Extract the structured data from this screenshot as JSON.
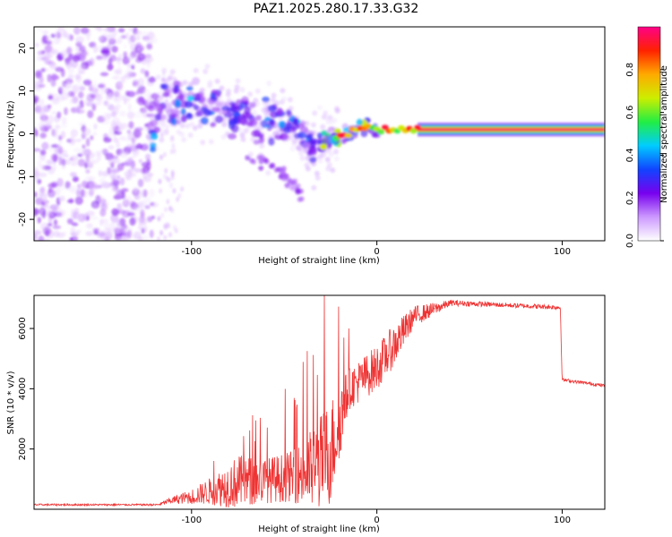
{
  "title": "PAZ1.2025.280.17.33.G32",
  "chart_data": [
    {
      "type": "heatmap",
      "name": "spectrogram",
      "xlabel": "Height of straight line (km)",
      "ylabel": "Frequency (Hz)",
      "xlim": [
        -185,
        123
      ],
      "ylim": [
        -25,
        25
      ],
      "xticks": [
        -100,
        0,
        100
      ],
      "xtick_labels": [
        "-100",
        "0",
        "100"
      ],
      "yticks": [
        20,
        10,
        0,
        -10,
        -20
      ],
      "ytick_labels": [
        "20",
        "10",
        "0",
        "-10",
        "-20"
      ],
      "noise_region_x": [
        -185,
        -120
      ],
      "signal_path": [
        {
          "x": -120,
          "f": 6
        },
        {
          "x": -105,
          "f": 7
        },
        {
          "x": -95,
          "f": 8
        },
        {
          "x": -85,
          "f": 5
        },
        {
          "x": -75,
          "f": 5
        },
        {
          "x": -65,
          "f": 3
        },
        {
          "x": -55,
          "f": 3
        },
        {
          "x": -45,
          "f": 2
        },
        {
          "x": -35,
          "f": -3
        },
        {
          "x": -25,
          "f": -1
        },
        {
          "x": -15,
          "f": 0
        },
        {
          "x": -8,
          "f": 2
        },
        {
          "x": 0,
          "f": 1
        },
        {
          "x": 123,
          "f": 1
        }
      ],
      "secondary_branch": [
        {
          "x": -70,
          "f": -5
        },
        {
          "x": -55,
          "f": -8
        },
        {
          "x": -45,
          "f": -12
        },
        {
          "x": -40,
          "f": -14
        }
      ],
      "steady_tone": {
        "f": 1,
        "x_start": 22,
        "x_end": 123,
        "amplitude": 1.0
      }
    },
    {
      "type": "line",
      "name": "snr",
      "xlabel": "Height of straight line (km)",
      "ylabel": "SNR (10 * v/v)",
      "xlim": [
        -185,
        123
      ],
      "ylim": [
        0,
        7100
      ],
      "xticks": [
        -100,
        0,
        100
      ],
      "xtick_labels": [
        "-100",
        "0",
        "100"
      ],
      "yticks": [
        2000,
        4000,
        6000
      ],
      "ytick_labels": [
        "2000",
        "4000",
        "6000"
      ],
      "color": "#ee3333",
      "envelope": [
        {
          "x": -185,
          "mean": 150,
          "spread": 60
        },
        {
          "x": -118,
          "mean": 150,
          "spread": 60
        },
        {
          "x": -112,
          "mean": 280,
          "spread": 200
        },
        {
          "x": -100,
          "mean": 420,
          "spread": 500
        },
        {
          "x": -90,
          "mean": 600,
          "spread": 900
        },
        {
          "x": -75,
          "mean": 900,
          "spread": 1800
        },
        {
          "x": -60,
          "mean": 950,
          "spread": 1500
        },
        {
          "x": -45,
          "mean": 1100,
          "spread": 1700
        },
        {
          "x": -35,
          "mean": 1300,
          "spread": 2800
        },
        {
          "x": -25,
          "mean": 1900,
          "spread": 3600
        },
        {
          "x": -15,
          "mean": 4000,
          "spread": 1400
        },
        {
          "x": 0,
          "mean": 4700,
          "spread": 1500
        },
        {
          "x": 10,
          "mean": 5500,
          "spread": 1400
        },
        {
          "x": 20,
          "mean": 6400,
          "spread": 700
        },
        {
          "x": 40,
          "mean": 6850,
          "spread": 200
        },
        {
          "x": 60,
          "mean": 6800,
          "spread": 160
        },
        {
          "x": 99,
          "mean": 6700,
          "spread": 160
        },
        {
          "x": 100,
          "mean": 4300,
          "spread": 110
        },
        {
          "x": 123,
          "mean": 4100,
          "spread": 110
        }
      ]
    }
  ],
  "colorbar": {
    "label": "Normalized spectral amplitude",
    "range": [
      0,
      1
    ],
    "ticks": [
      0.0,
      0.2,
      0.4,
      0.6,
      0.8
    ],
    "tick_labels": [
      "0.0",
      "0.2",
      "0.4",
      "0.6",
      "0.8"
    ],
    "stops": [
      "#ffffff",
      "#cc99ff",
      "#7700ee",
      "#1144ff",
      "#00ccff",
      "#22ee44",
      "#ccee00",
      "#ffaa00",
      "#ff2200",
      "#ff0088"
    ]
  }
}
